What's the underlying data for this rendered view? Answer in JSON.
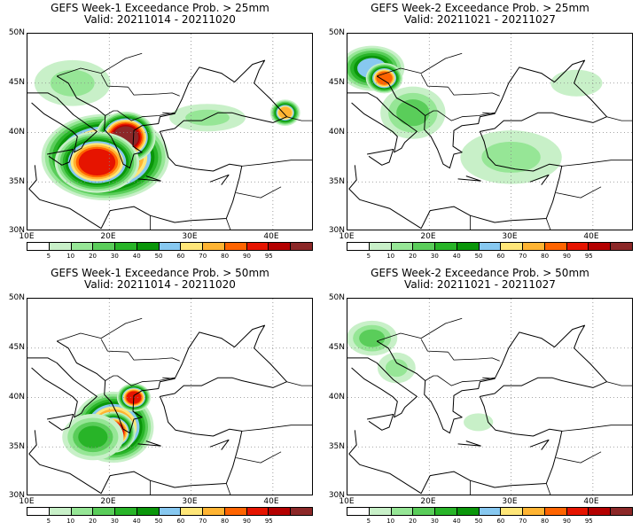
{
  "colorbar": {
    "colors": [
      "#ffffff",
      "#c8f0c8",
      "#96e696",
      "#5acd5a",
      "#28b428",
      "#0a960a",
      "#87c8f0",
      "#ffe678",
      "#ffb432",
      "#ff6400",
      "#e61400",
      "#b40000",
      "#8c2828"
    ],
    "labels": [
      "5",
      "10",
      "20",
      "30",
      "40",
      "50",
      "60",
      "70",
      "80",
      "90",
      "95"
    ]
  },
  "axes": {
    "lat_labels": [
      "50N",
      "45N",
      "40N",
      "35N",
      "30N"
    ],
    "lon_labels": [
      "10E",
      "20E",
      "30E",
      "40E"
    ],
    "lon_range": [
      10,
      45
    ],
    "lat_range": [
      30,
      50
    ]
  },
  "panels": [
    {
      "title": "GEFS Week-1 Exceedance Prob. > 25mm",
      "valid": "Valid: 20211014 - 20211020",
      "cells": [
        {
          "lon": 19.5,
          "lat": 37.5,
          "rx": 7.5,
          "ry": 4.2,
          "level": 11
        },
        {
          "lon": 22.0,
          "lat": 39.5,
          "rx": 3.5,
          "ry": 2.5,
          "level": 12
        },
        {
          "lon": 18.5,
          "lat": 37.0,
          "rx": 5.0,
          "ry": 3.0,
          "level": 10
        },
        {
          "lon": 41.5,
          "lat": 42.0,
          "rx": 1.8,
          "ry": 1.3,
          "level": 8
        },
        {
          "lon": 15.5,
          "lat": 45.0,
          "rx": 6.0,
          "ry": 3.0,
          "level": 2
        },
        {
          "lon": 32.0,
          "lat": 41.5,
          "rx": 6.0,
          "ry": 1.8,
          "level": 2
        }
      ]
    },
    {
      "title": "GEFS Week-2 Exceedance Prob. > 25mm",
      "valid": "Valid: 20211021 - 20211027",
      "cells": [
        {
          "lon": 13.0,
          "lat": 46.5,
          "rx": 4.0,
          "ry": 2.3,
          "level": 6
        },
        {
          "lon": 14.5,
          "lat": 45.5,
          "rx": 2.2,
          "ry": 1.5,
          "level": 9
        },
        {
          "lon": 18.0,
          "lat": 42.0,
          "rx": 4.5,
          "ry": 3.0,
          "level": 3
        },
        {
          "lon": 30.0,
          "lat": 37.5,
          "rx": 8.0,
          "ry": 3.5,
          "level": 2
        },
        {
          "lon": 38.0,
          "lat": 45.0,
          "rx": 7.0,
          "ry": 3.0,
          "level": 1
        }
      ]
    },
    {
      "title": "GEFS Week-1 Exceedance Prob. > 50mm",
      "valid": "Valid: 20211014 - 20211020",
      "cells": [
        {
          "lon": 20.5,
          "lat": 37.0,
          "rx": 4.8,
          "ry": 3.5,
          "level": 9
        },
        {
          "lon": 20.5,
          "lat": 36.5,
          "rx": 2.6,
          "ry": 2.0,
          "level": 11
        },
        {
          "lon": 23.0,
          "lat": 40.0,
          "rx": 2.0,
          "ry": 1.4,
          "level": 10
        },
        {
          "lon": 18.0,
          "lat": 36.0,
          "rx": 4.0,
          "ry": 2.5,
          "level": 4
        }
      ]
    },
    {
      "title": "GEFS Week-2 Exceedance Prob. > 50mm",
      "valid": "Valid: 20211021 - 20211027",
      "cells": [
        {
          "lon": 13.0,
          "lat": 46.0,
          "rx": 3.5,
          "ry": 2.0,
          "level": 3
        },
        {
          "lon": 16.0,
          "lat": 43.0,
          "rx": 3.0,
          "ry": 2.0,
          "level": 2
        },
        {
          "lon": 26.0,
          "lat": 37.5,
          "rx": 4.0,
          "ry": 2.0,
          "level": 1
        }
      ]
    }
  ]
}
